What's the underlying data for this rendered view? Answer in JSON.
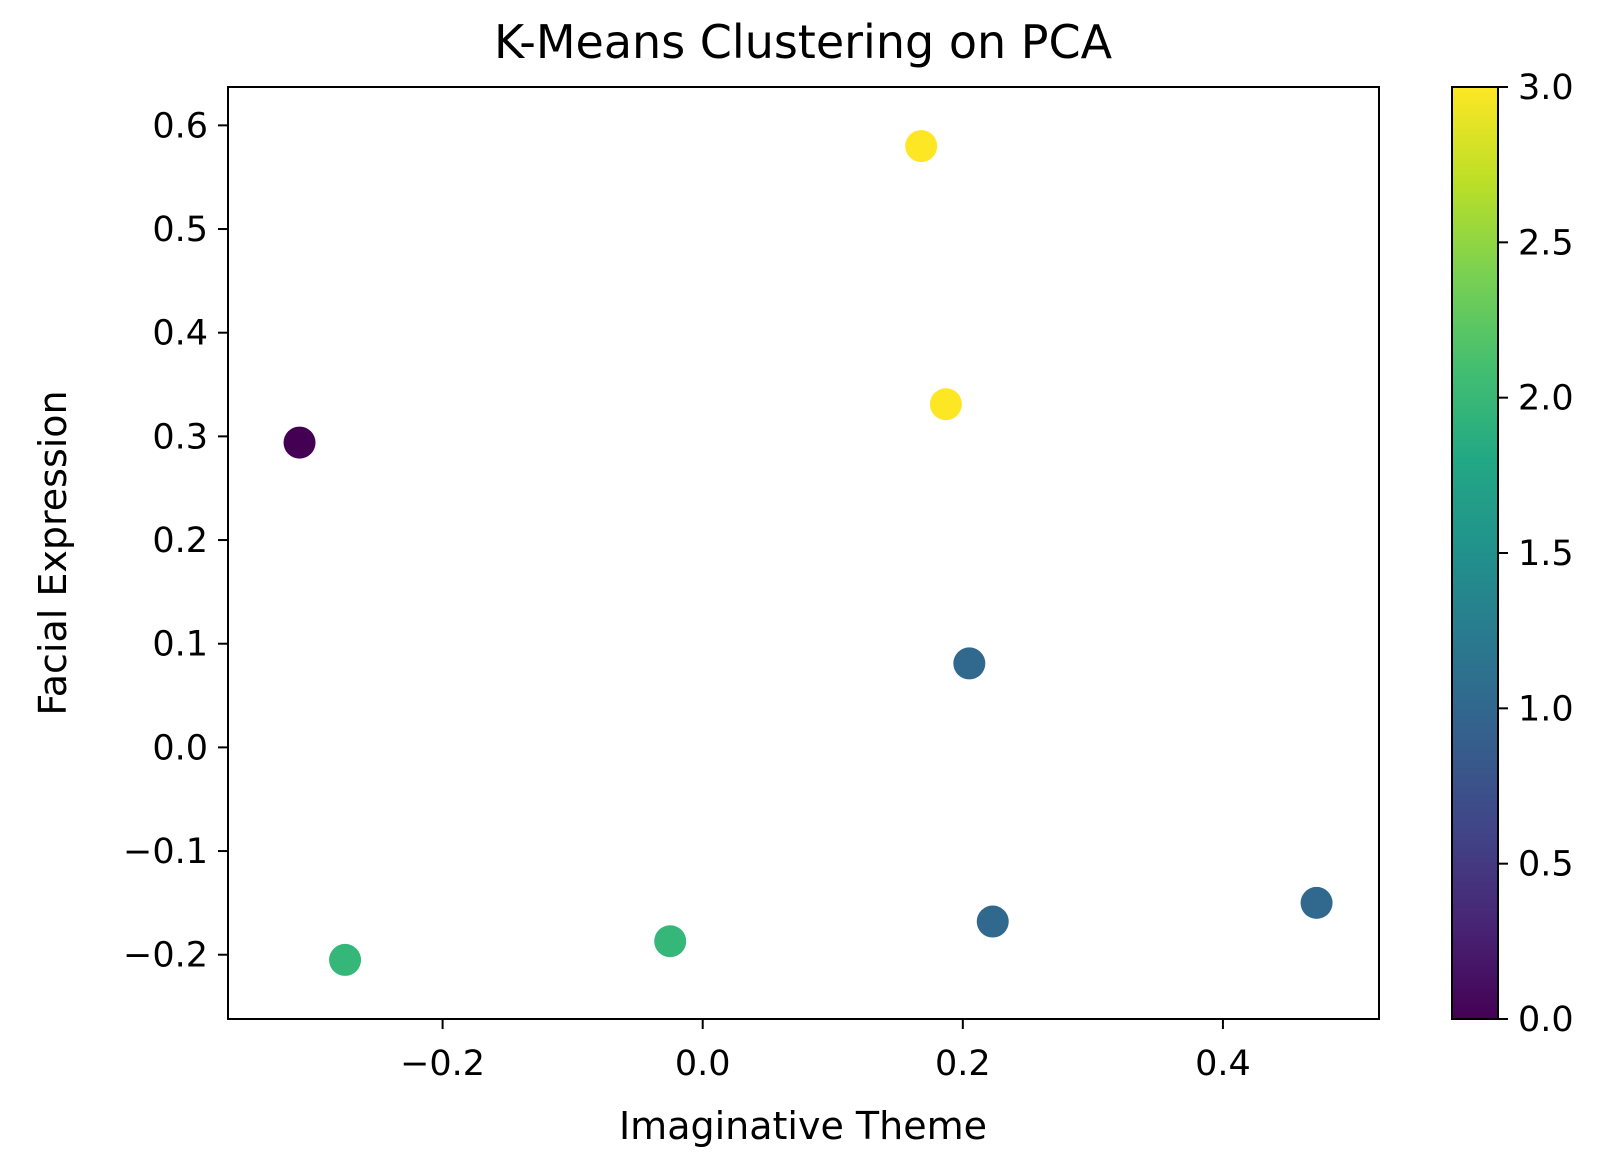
{
  "chart_data": {
    "type": "scatter",
    "title": "K-Means Clustering on PCA",
    "xlabel": "Imaginative Theme",
    "ylabel": "Facial Expression",
    "xlim": [
      -0.365,
      0.52
    ],
    "ylim": [
      -0.262,
      0.637
    ],
    "xticks": [
      -0.2,
      0.0,
      0.2,
      0.4
    ],
    "xtick_labels": [
      "−0.2",
      "0.0",
      "0.2",
      "0.4"
    ],
    "yticks": [
      -0.2,
      -0.1,
      0.0,
      0.1,
      0.2,
      0.3,
      0.4,
      0.5,
      0.6
    ],
    "ytick_labels": [
      "−0.2",
      "−0.1",
      "0.0",
      "0.1",
      "0.2",
      "0.3",
      "0.4",
      "0.5",
      "0.6"
    ],
    "grid": false,
    "colormap": "viridis",
    "colorbar": {
      "range": [
        0.0,
        3.0
      ],
      "ticks": [
        0.0,
        0.5,
        1.0,
        1.5,
        2.0,
        2.5,
        3.0
      ],
      "tick_labels": [
        "0.0",
        "0.5",
        "1.0",
        "1.5",
        "2.0",
        "2.5",
        "3.0"
      ],
      "stops": [
        "#440154",
        "#482475",
        "#414487",
        "#355f8d",
        "#2a788e",
        "#21918c",
        "#22a884",
        "#44bf70",
        "#7ad151",
        "#bddf26",
        "#fde725"
      ]
    },
    "points": [
      {
        "x": -0.31,
        "y": 0.294,
        "cluster": 0,
        "color": "#440154"
      },
      {
        "x": -0.275,
        "y": -0.205,
        "cluster": 2,
        "color": "#35b779"
      },
      {
        "x": -0.025,
        "y": -0.187,
        "cluster": 2,
        "color": "#35b779"
      },
      {
        "x": 0.168,
        "y": 0.58,
        "cluster": 3,
        "color": "#fde725"
      },
      {
        "x": 0.187,
        "y": 0.331,
        "cluster": 3,
        "color": "#fde725"
      },
      {
        "x": 0.205,
        "y": 0.081,
        "cluster": 1,
        "color": "#31688e"
      },
      {
        "x": 0.223,
        "y": -0.168,
        "cluster": 1,
        "color": "#31688e"
      },
      {
        "x": 0.472,
        "y": -0.15,
        "cluster": 1,
        "color": "#31688e"
      }
    ]
  }
}
